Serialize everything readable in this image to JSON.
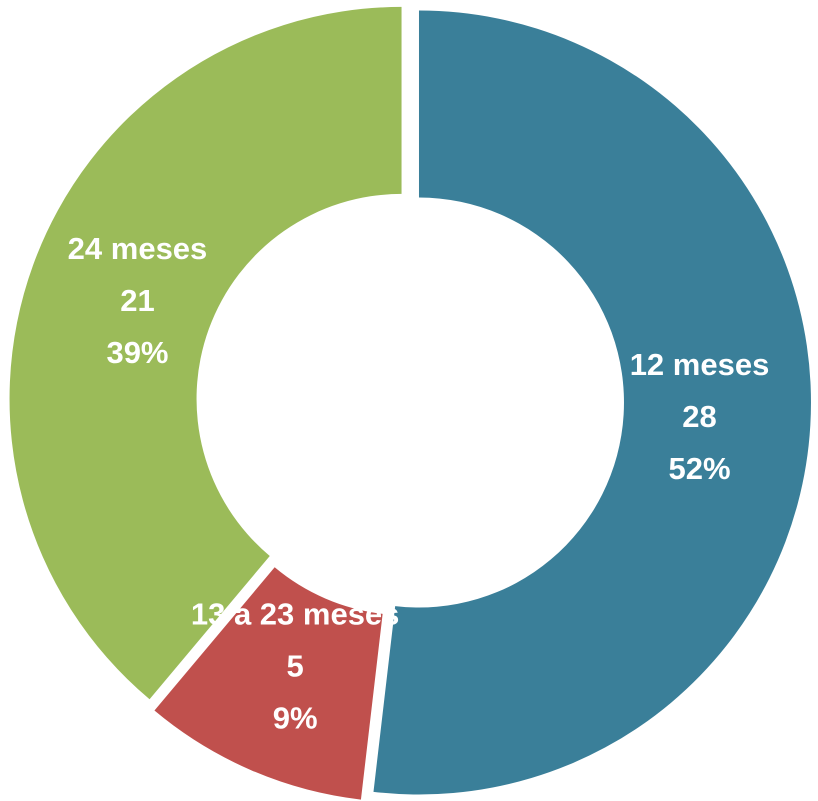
{
  "chart_data": {
    "type": "donut",
    "categories": [
      "12 meses",
      "13 a 23 meses",
      "24 meses"
    ],
    "values": [
      28,
      5,
      21
    ],
    "percents": [
      52,
      9,
      39
    ],
    "percent_labels": [
      "52%",
      "9%",
      "39%"
    ],
    "colors": [
      "#3a7f99",
      "#c0504d",
      "#9bbb59"
    ]
  }
}
